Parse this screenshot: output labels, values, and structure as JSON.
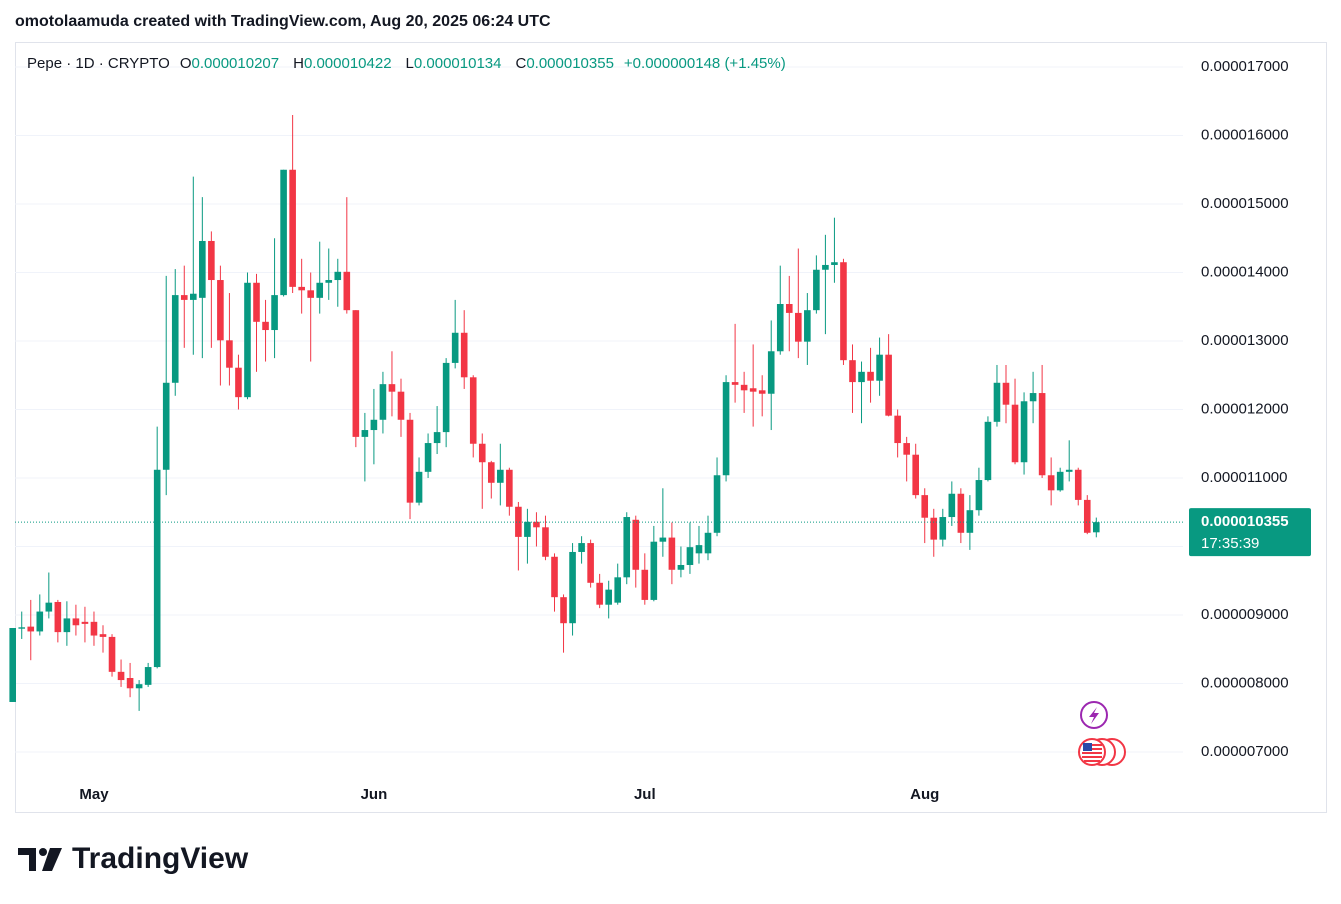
{
  "header": {
    "attribution": "omotolaamuda created with TradingView.com, Aug 20, 2025 06:24 UTC"
  },
  "footer": {
    "logo": "TradingView"
  },
  "chart_data": {
    "type": "candlestick",
    "title": "Pepe · 1D · CRYPTO",
    "ohlc_labels": [
      {
        "key": "O",
        "value": "0.000010207"
      },
      {
        "key": "H",
        "value": "0.000010422"
      },
      {
        "key": "L",
        "value": "0.000010134"
      },
      {
        "key": "C",
        "value": "0.000010355"
      }
    ],
    "change": "+0.000000148 (+1.45%)",
    "last_price_label": "0.000010355",
    "countdown": "17:35:39",
    "up_color": "#089981",
    "down_color": "#f23645",
    "grid": true,
    "ylim": [
      6.518e-06,
      1.7365e-05
    ],
    "yticks": [
      {
        "value": 7e-06,
        "label": "0.000007000"
      },
      {
        "value": 8e-06,
        "label": "0.000008000"
      },
      {
        "value": 9e-06,
        "label": "0.000009000"
      },
      {
        "value": 1e-05,
        "label": "0.000010000"
      },
      {
        "value": 1.1e-05,
        "label": "0.000011000"
      },
      {
        "value": 1.2e-05,
        "label": "0.000012000"
      },
      {
        "value": 1.3e-05,
        "label": "0.000013000"
      },
      {
        "value": 1.4e-05,
        "label": "0.000014000"
      },
      {
        "value": 1.5e-05,
        "label": "0.000015000"
      },
      {
        "value": 1.6e-05,
        "label": "0.000016000"
      },
      {
        "value": 1.7e-05,
        "label": "0.000017000"
      }
    ],
    "categories": [
      null,
      null,
      null,
      null,
      null,
      null,
      null,
      null,
      null,
      "May",
      null,
      null,
      null,
      null,
      null,
      null,
      null,
      null,
      null,
      null,
      null,
      null,
      null,
      null,
      null,
      null,
      null,
      null,
      null,
      null,
      null,
      null,
      null,
      null,
      null,
      null,
      null,
      null,
      null,
      null,
      "Jun",
      null,
      null,
      null,
      null,
      null,
      null,
      null,
      null,
      null,
      null,
      null,
      null,
      null,
      null,
      null,
      null,
      null,
      null,
      null,
      null,
      null,
      null,
      null,
      null,
      null,
      null,
      null,
      null,
      null,
      "Jul",
      null,
      null,
      null,
      null,
      null,
      null,
      null,
      null,
      null,
      null,
      null,
      null,
      null,
      null,
      null,
      null,
      null,
      null,
      null,
      null,
      null,
      null,
      null,
      null,
      null,
      null,
      null,
      null,
      null,
      null,
      "Aug",
      null,
      null,
      null,
      null,
      null,
      null,
      null,
      null,
      null,
      null,
      null,
      null,
      null,
      null,
      null,
      null,
      null,
      null,
      null
    ],
    "open": [
      7.73e-06,
      8.8e-06,
      8.83e-06,
      8.76e-06,
      9.05e-06,
      9.19e-06,
      8.75e-06,
      8.95e-06,
      8.9e-06,
      8.9e-06,
      8.72e-06,
      8.68e-06,
      8.17e-06,
      8.08e-06,
      7.93e-06,
      7.98e-06,
      8.24e-06,
      1.112e-05,
      1.239e-05,
      1.367e-05,
      1.36e-05,
      1.363e-05,
      1.446e-05,
      1.389e-05,
      1.301e-05,
      1.261e-05,
      1.218e-05,
      1.385e-05,
      1.328e-05,
      1.316e-05,
      1.367e-05,
      1.55e-05,
      1.379e-05,
      1.374e-05,
      1.363e-05,
      1.385e-05,
      1.389e-05,
      1.401e-05,
      1.345e-05,
      1.16e-05,
      1.17e-05,
      1.185e-05,
      1.237e-05,
      1.226e-05,
      1.185e-05,
      1.064e-05,
      1.109e-05,
      1.151e-05,
      1.167e-05,
      1.268e-05,
      1.312e-05,
      1.247e-05,
      1.15e-05,
      1.123e-05,
      1.093e-05,
      1.112e-05,
      1.058e-05,
      1.014e-05,
      1.036e-05,
      1.028e-05,
      9.85e-06,
      9.26e-06,
      8.88e-06,
      9.92e-06,
      1.005e-05,
      9.47e-06,
      9.15e-06,
      9.18e-06,
      9.55e-06,
      1.039e-05,
      9.66e-06,
      9.22e-06,
      1.007e-05,
      1.013e-05,
      9.66e-06,
      9.73e-06,
      9.9e-06,
      9.9e-06,
      1.02e-05,
      1.104e-05,
      1.24e-05,
      1.236e-05,
      1.231e-05,
      1.228e-05,
      1.223e-05,
      1.285e-05,
      1.354e-05,
      1.341e-05,
      1.299e-05,
      1.345e-05,
      1.404e-05,
      1.411e-05,
      1.415e-05,
      1.272e-05,
      1.24e-05,
      1.255e-05,
      1.242e-05,
      1.28e-05,
      1.191e-05,
      1.151e-05,
      1.134e-05,
      1.075e-05,
      1.042e-05,
      1.01e-05,
      1.043e-05,
      1.077e-05,
      1.02e-05,
      1.053e-05,
      1.097e-05,
      1.182e-05,
      1.239e-05,
      1.207e-05,
      1.123e-05,
      1.212e-05,
      1.224e-05,
      1.104e-05,
      1.082e-05,
      1.109e-05,
      1.112e-05,
      1.068e-05,
      1.0207e-05
    ],
    "high": [
      8.81e-06,
      9.05e-06,
      9.22e-06,
      9.3e-06,
      9.62e-06,
      9.22e-06,
      9.2e-06,
      9.15e-06,
      9.12e-06,
      9.05e-06,
      8.85e-06,
      8.72e-06,
      8.35e-06,
      8.3e-06,
      8.05e-06,
      8.3e-06,
      1.175e-05,
      1.395e-05,
      1.405e-05,
      1.41e-05,
      1.54e-05,
      1.51e-05,
      1.46e-05,
      1.41e-05,
      1.37e-05,
      1.28e-05,
      1.4e-05,
      1.398e-05,
      1.36e-05,
      1.45e-05,
      1.55e-05,
      1.63e-05,
      1.42e-05,
      1.4e-05,
      1.445e-05,
      1.435e-05,
      1.42e-05,
      1.51e-05,
      1.345e-05,
      1.195e-05,
      1.23e-05,
      1.255e-05,
      1.285e-05,
      1.245e-05,
      1.195e-05,
      1.13e-05,
      1.165e-05,
      1.205e-05,
      1.275e-05,
      1.36e-05,
      1.345e-05,
      1.25e-05,
      1.165e-05,
      1.125e-05,
      1.15e-05,
      1.115e-05,
      1.065e-05,
      1.055e-05,
      1.05e-05,
      1.045e-05,
      9.9e-06,
      9.3e-06,
      1.005e-05,
      1.015e-05,
      1.01e-05,
      9.6e-06,
      9.5e-06,
      9.75e-06,
      1.05e-05,
      1.045e-05,
      9.9e-06,
      1.03e-05,
      1.085e-05,
      1.035e-05,
      1e-05,
      1.035e-05,
      1.03e-05,
      1.045e-05,
      1.13e-05,
      1.25e-05,
      1.325e-05,
      1.255e-05,
      1.295e-05,
      1.25e-05,
      1.33e-05,
      1.41e-05,
      1.395e-05,
      1.435e-05,
      1.37e-05,
      1.425e-05,
      1.455e-05,
      1.48e-05,
      1.42e-05,
      1.295e-05,
      1.27e-05,
      1.29e-05,
      1.305e-05,
      1.31e-05,
      1.2e-05,
      1.16e-05,
      1.15e-05,
      1.085e-05,
      1.055e-05,
      1.055e-05,
      1.095e-05,
      1.085e-05,
      1.075e-05,
      1.115e-05,
      1.19e-05,
      1.265e-05,
      1.265e-05,
      1.245e-05,
      1.225e-05,
      1.255e-05,
      1.265e-05,
      1.13e-05,
      1.115e-05,
      1.155e-05,
      1.115e-05,
      1.075e-05,
      1.0422e-05
    ],
    "low": [
      7.73e-06,
      8.65e-06,
      8.34e-06,
      8.7e-06,
      8.95e-06,
      8.6e-06,
      8.55e-06,
      8.7e-06,
      8.6e-06,
      8.55e-06,
      8.45e-06,
      8.1e-06,
      7.95e-06,
      7.8e-06,
      7.6e-06,
      7.95e-06,
      8.22e-06,
      1.075e-05,
      1.22e-05,
      1.29e-05,
      1.28e-05,
      1.275e-05,
      1.29e-05,
      1.235e-05,
      1.235e-05,
      1.2e-05,
      1.215e-05,
      1.255e-05,
      1.27e-05,
      1.275e-05,
      1.365e-05,
      1.37e-05,
      1.34e-05,
      1.27e-05,
      1.34e-05,
      1.36e-05,
      1.35e-05,
      1.34e-05,
      1.145e-05,
      1.095e-05,
      1.12e-05,
      1.165e-05,
      1.19e-05,
      1.16e-05,
      1.04e-05,
      1.06e-05,
      1.1e-05,
      1.135e-05,
      1.145e-05,
      1.26e-05,
      1.23e-05,
      1.13e-05,
      1.055e-05,
      1.07e-05,
      1.06e-05,
      1.045e-05,
      9.65e-06,
      9.75e-06,
      1e-05,
      9.8e-06,
      9.05e-06,
      8.45e-06,
      8.7e-06,
      9.75e-06,
      9.4e-06,
      9.1e-06,
      8.95e-06,
      9.15e-06,
      9.45e-06,
      9.4e-06,
      9.15e-06,
      9.2e-06,
      9.85e-06,
      9.45e-06,
      9.55e-06,
      9.6e-06,
      9.75e-06,
      9.8e-06,
      1.015e-05,
      1.095e-05,
      1.21e-05,
      1.195e-05,
      1.175e-05,
      1.19e-05,
      1.17e-05,
      1.28e-05,
      1.285e-05,
      1.275e-05,
      1.265e-05,
      1.34e-05,
      1.31e-05,
      1.385e-05,
      1.265e-05,
      1.195e-05,
      1.18e-05,
      1.21e-05,
      1.22e-05,
      1.19e-05,
      1.13e-05,
      1.095e-05,
      1.07e-05,
      1.005e-05,
      9.85e-06,
      1e-05,
      1.03e-05,
      1.005e-05,
      9.95e-06,
      1.045e-05,
      1.095e-05,
      1.175e-05,
      1.18e-05,
      1.12e-05,
      1.105e-05,
      1.18e-05,
      1.1e-05,
      1.06e-05,
      1.08e-05,
      1.095e-05,
      1.06e-05,
      1.018e-05,
      1.0134e-05
    ],
    "close": [
      8.81e-06,
      8.82e-06,
      8.76e-06,
      9.05e-06,
      9.18e-06,
      8.75e-06,
      8.95e-06,
      8.85e-06,
      8.87e-06,
      8.7e-06,
      8.68e-06,
      8.17e-06,
      8.05e-06,
      7.93e-06,
      7.99e-06,
      8.24e-06,
      1.112e-05,
      1.239e-05,
      1.367e-05,
      1.36e-05,
      1.369e-05,
      1.446e-05,
      1.389e-05,
      1.301e-05,
      1.261e-05,
      1.218e-05,
      1.385e-05,
      1.328e-05,
      1.316e-05,
      1.367e-05,
      1.55e-05,
      1.379e-05,
      1.374e-05,
      1.363e-05,
      1.385e-05,
      1.389e-05,
      1.401e-05,
      1.345e-05,
      1.16e-05,
      1.17e-05,
      1.185e-05,
      1.237e-05,
      1.226e-05,
      1.185e-05,
      1.064e-05,
      1.109e-05,
      1.151e-05,
      1.167e-05,
      1.268e-05,
      1.312e-05,
      1.247e-05,
      1.15e-05,
      1.123e-05,
      1.093e-05,
      1.112e-05,
      1.058e-05,
      1.014e-05,
      1.036e-05,
      1.028e-05,
      9.85e-06,
      9.26e-06,
      8.88e-06,
      9.92e-06,
      1.005e-05,
      9.47e-06,
      9.15e-06,
      9.37e-06,
      9.55e-06,
      1.043e-05,
      9.66e-06,
      9.22e-06,
      1.007e-05,
      1.013e-05,
      9.66e-06,
      9.73e-06,
      9.99e-06,
      1.002e-05,
      1.02e-05,
      1.104e-05,
      1.24e-05,
      1.236e-05,
      1.228e-05,
      1.226e-05,
      1.223e-05,
      1.285e-05,
      1.354e-05,
      1.341e-05,
      1.299e-05,
      1.345e-05,
      1.404e-05,
      1.411e-05,
      1.415e-05,
      1.272e-05,
      1.24e-05,
      1.255e-05,
      1.242e-05,
      1.28e-05,
      1.191e-05,
      1.151e-05,
      1.134e-05,
      1.075e-05,
      1.042e-05,
      1.01e-05,
      1.043e-05,
      1.077e-05,
      1.02e-05,
      1.053e-05,
      1.097e-05,
      1.182e-05,
      1.239e-05,
      1.207e-05,
      1.123e-05,
      1.212e-05,
      1.224e-05,
      1.104e-05,
      1.082e-05,
      1.109e-05,
      1.112e-05,
      1.068e-05,
      1.02e-05,
      1.0355e-05
    ]
  }
}
